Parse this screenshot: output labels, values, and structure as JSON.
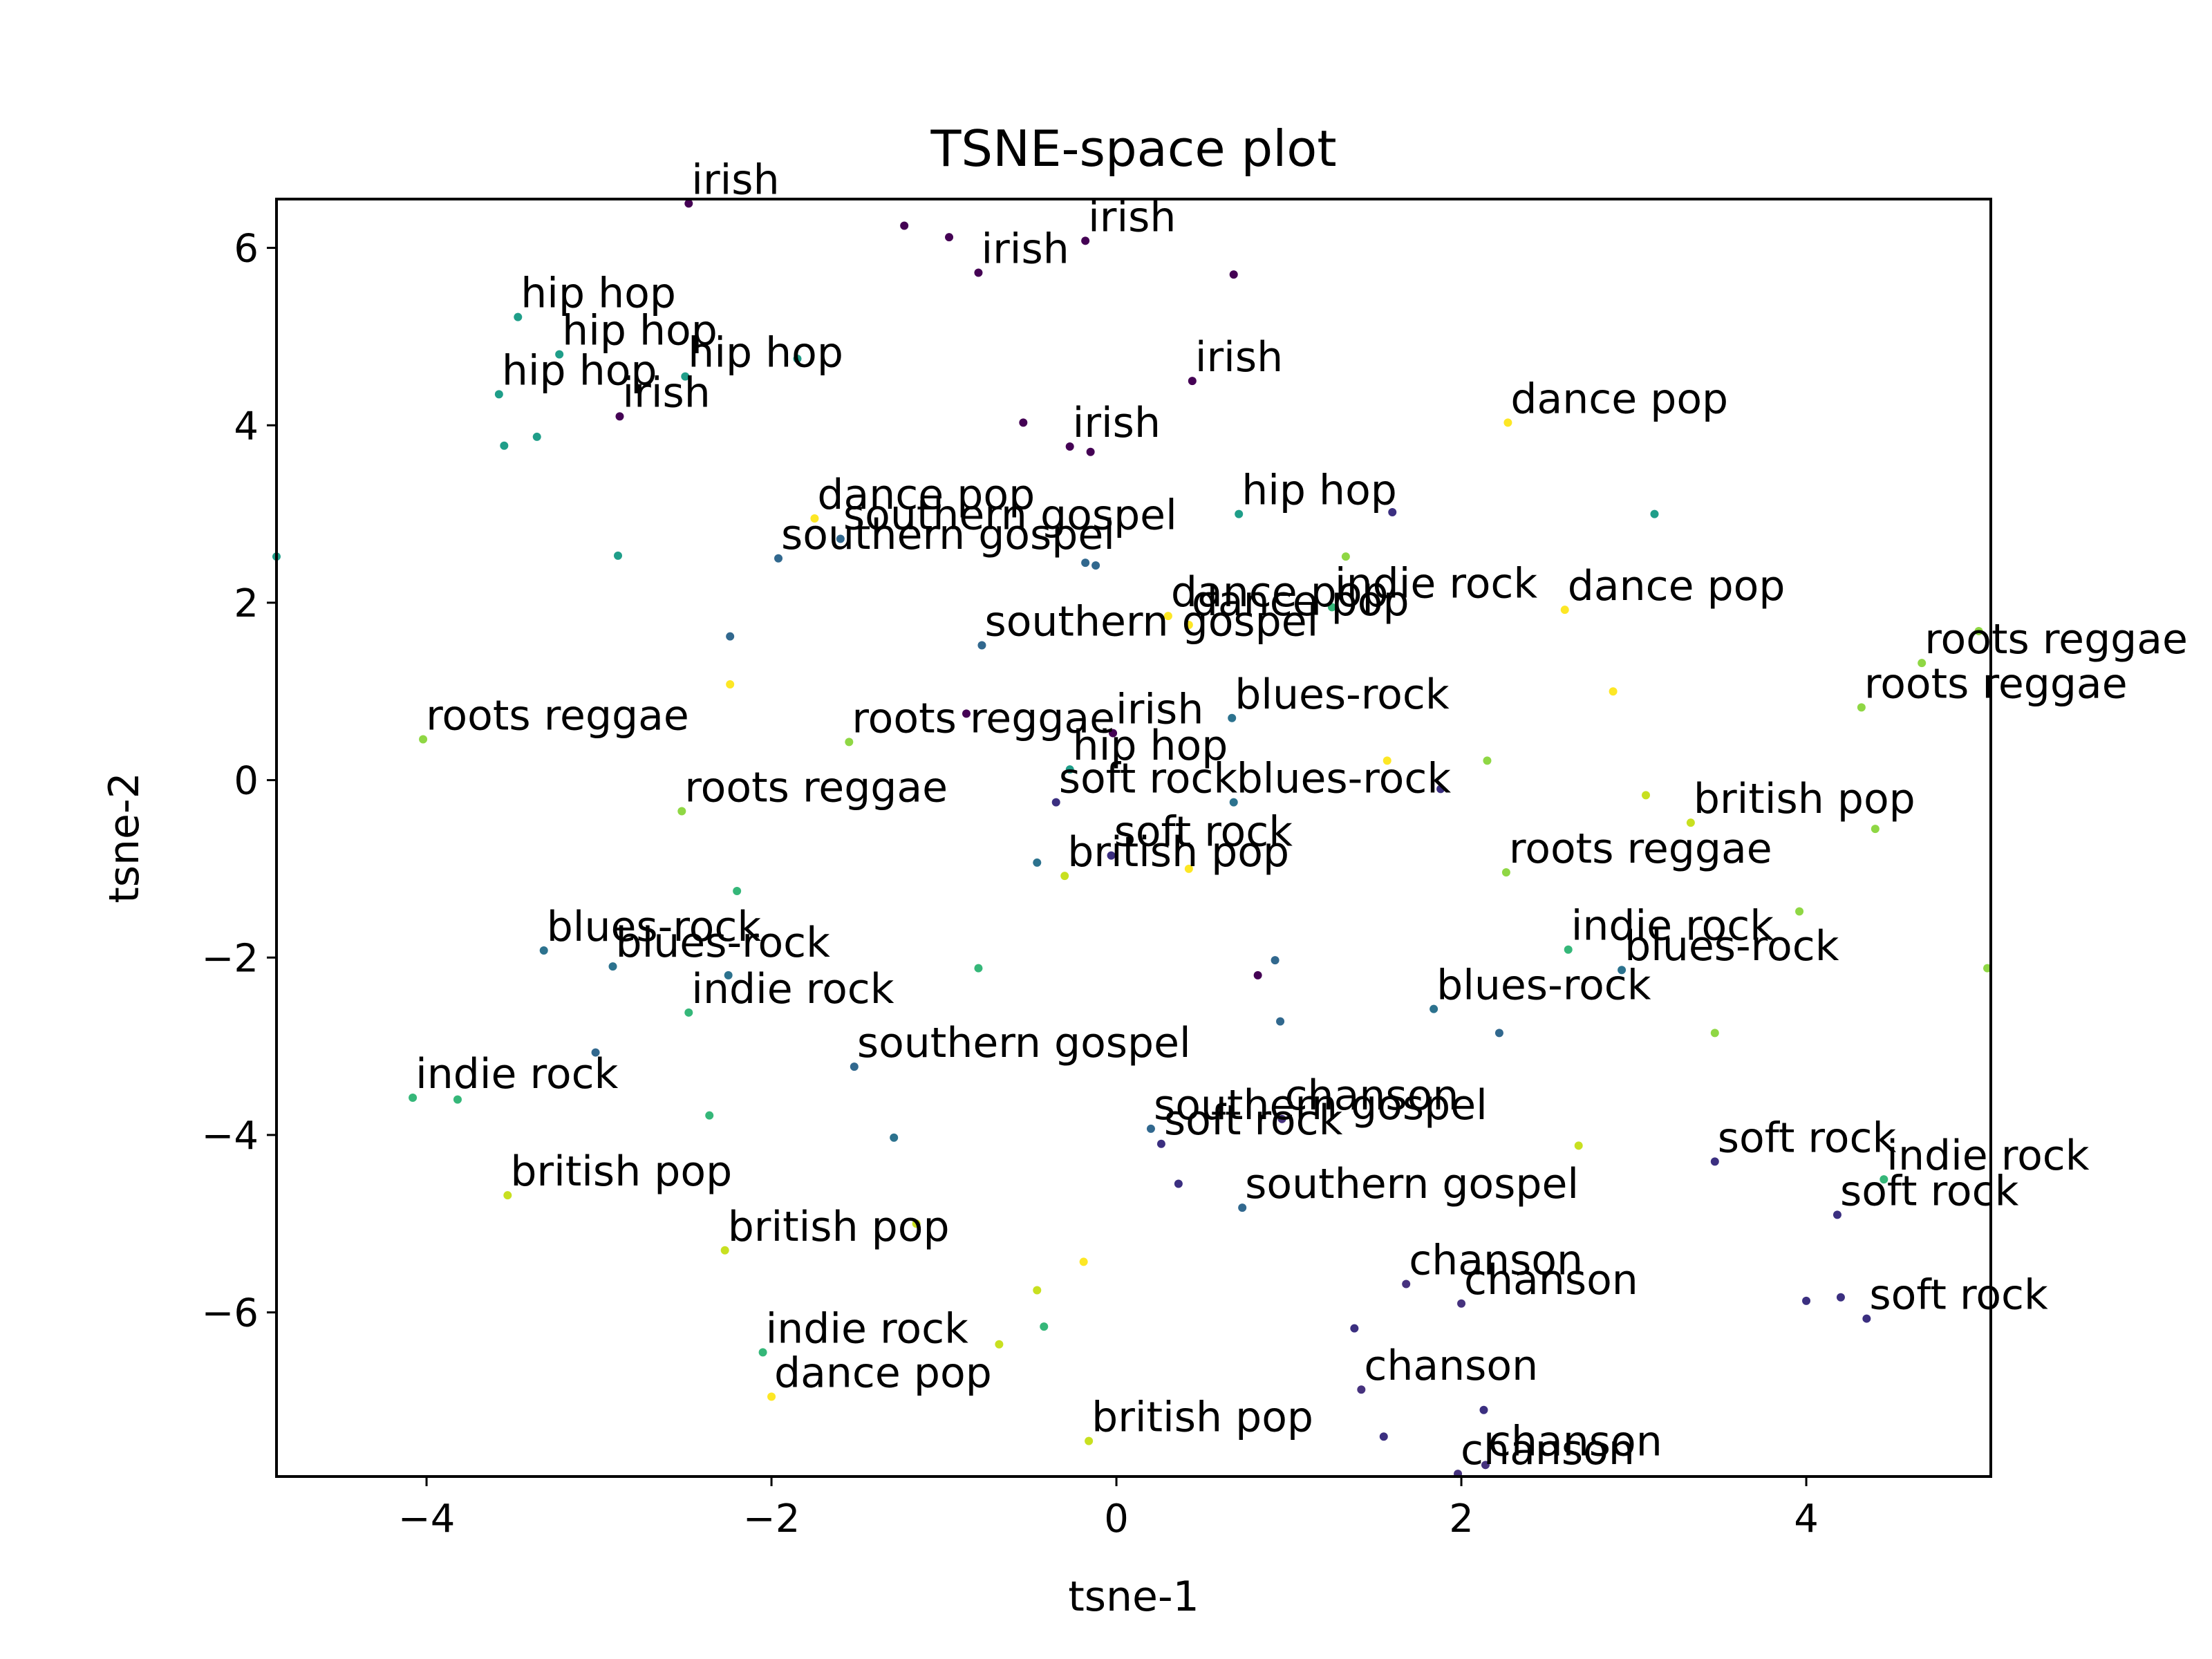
{
  "chart_data": {
    "type": "scatter",
    "title": "TSNE-space plot",
    "xlabel": "tsne-1",
    "ylabel": "tsne-2",
    "xlim": [
      -4.87,
      5.07
    ],
    "ylim": [
      -7.85,
      6.55
    ],
    "xticks": [
      -4,
      -2,
      0,
      2,
      4
    ],
    "yticks": [
      -6,
      -4,
      -2,
      0,
      2,
      4,
      6
    ],
    "xtick_labels": [
      "−4",
      "−2",
      "0",
      "2",
      "4"
    ],
    "ytick_labels": [
      "−6",
      "−4",
      "−2",
      "0",
      "2",
      "4",
      "6"
    ],
    "grid": false,
    "colormap": "viridis",
    "genre_colors": {
      "irish": "#440154",
      "chanson": "#46327e",
      "soft rock": "#3b2f80",
      "southern gospel": "#31688e",
      "blues-rock": "#2c728e",
      "hip hop": "#1f9e89",
      "indie rock": "#35b779",
      "roots reggae": "#8fd744",
      "british pop": "#c8e020",
      "dance pop": "#fde725"
    },
    "labeled_points": [
      {
        "x": -2.48,
        "y": 6.5,
        "label": "irish"
      },
      {
        "x": -0.18,
        "y": 6.08,
        "label": "irish"
      },
      {
        "x": -0.8,
        "y": 5.72,
        "label": "irish"
      },
      {
        "x": -3.47,
        "y": 5.22,
        "label": "hip hop"
      },
      {
        "x": -3.23,
        "y": 4.8,
        "label": "hip hop"
      },
      {
        "x": -2.5,
        "y": 4.55,
        "label": "hip hop"
      },
      {
        "x": -3.58,
        "y": 4.35,
        "label": "hip hop"
      },
      {
        "x": -2.88,
        "y": 4.1,
        "label": "irish"
      },
      {
        "x": 0.44,
        "y": 4.5,
        "label": "irish"
      },
      {
        "x": -0.27,
        "y": 3.76,
        "label": "irish"
      },
      {
        "x": 2.27,
        "y": 4.03,
        "label": "dance pop"
      },
      {
        "x": 0.71,
        "y": 3.0,
        "label": "hip hop"
      },
      {
        "x": -1.75,
        "y": 2.95,
        "label": "dance pop"
      },
      {
        "x": -1.6,
        "y": 2.72,
        "label": "southern gospel"
      },
      {
        "x": -1.96,
        "y": 2.5,
        "label": "southern gospel"
      },
      {
        "x": 0.3,
        "y": 1.85,
        "label": "dance pop"
      },
      {
        "x": 0.42,
        "y": 1.75,
        "label": "dance pop"
      },
      {
        "x": 1.25,
        "y": 1.95,
        "label": "indie rock"
      },
      {
        "x": 2.6,
        "y": 1.92,
        "label": "dance pop"
      },
      {
        "x": -0.78,
        "y": 1.52,
        "label": "southern gospel"
      },
      {
        "x": 4.67,
        "y": 1.32,
        "label": "roots reggae"
      },
      {
        "x": 4.32,
        "y": 0.82,
        "label": "roots reggae"
      },
      {
        "x": 0.67,
        "y": 0.7,
        "label": "blues-rock"
      },
      {
        "x": -0.02,
        "y": 0.53,
        "label": "irish"
      },
      {
        "x": -4.02,
        "y": 0.46,
        "label": "roots reggae"
      },
      {
        "x": -1.55,
        "y": 0.43,
        "label": "roots reggae"
      },
      {
        "x": -0.27,
        "y": 0.12,
        "label": "hip hop"
      },
      {
        "x": 0.68,
        "y": -0.25,
        "label": "blues-rock"
      },
      {
        "x": -0.35,
        "y": -0.25,
        "label": "soft rock"
      },
      {
        "x": -2.52,
        "y": -0.35,
        "label": "roots reggae"
      },
      {
        "x": 3.33,
        "y": -0.48,
        "label": "british pop"
      },
      {
        "x": -0.03,
        "y": -0.85,
        "label": "soft rock"
      },
      {
        "x": -0.3,
        "y": -1.08,
        "label": "british pop"
      },
      {
        "x": 2.26,
        "y": -1.04,
        "label": "roots reggae"
      },
      {
        "x": 2.62,
        "y": -1.91,
        "label": "indie rock"
      },
      {
        "x": -3.32,
        "y": -1.92,
        "label": "blues-rock"
      },
      {
        "x": -2.92,
        "y": -2.1,
        "label": "blues-rock"
      },
      {
        "x": 2.93,
        "y": -2.14,
        "label": "blues-rock"
      },
      {
        "x": 1.84,
        "y": -2.58,
        "label": "blues-rock"
      },
      {
        "x": -2.48,
        "y": -2.62,
        "label": "indie rock"
      },
      {
        "x": -1.52,
        "y": -3.23,
        "label": "southern gospel"
      },
      {
        "x": -4.08,
        "y": -3.58,
        "label": "indie rock"
      },
      {
        "x": 0.96,
        "y": -3.82,
        "label": "chanson"
      },
      {
        "x": 0.2,
        "y": -3.93,
        "label": "southern gospel"
      },
      {
        "x": 0.26,
        "y": -4.1,
        "label": "soft rock"
      },
      {
        "x": 3.47,
        "y": -4.3,
        "label": "soft rock"
      },
      {
        "x": 4.45,
        "y": -4.5,
        "label": "indie rock"
      },
      {
        "x": -3.53,
        "y": -4.68,
        "label": "british pop"
      },
      {
        "x": 0.73,
        "y": -4.82,
        "label": "southern gospel"
      },
      {
        "x": 4.18,
        "y": -4.9,
        "label": "soft rock"
      },
      {
        "x": -2.27,
        "y": -5.3,
        "label": "british pop"
      },
      {
        "x": 1.68,
        "y": -5.68,
        "label": "chanson"
      },
      {
        "x": 2.0,
        "y": -5.9,
        "label": "chanson"
      },
      {
        "x": 4.35,
        "y": -6.07,
        "label": "soft rock"
      },
      {
        "x": -2.05,
        "y": -6.45,
        "label": "indie rock"
      },
      {
        "x": -2.0,
        "y": -6.95,
        "label": "dance pop"
      },
      {
        "x": 1.42,
        "y": -6.87,
        "label": "chanson"
      },
      {
        "x": -0.16,
        "y": -7.45,
        "label": "british pop"
      },
      {
        "x": 2.14,
        "y": -7.72,
        "label": "chanson"
      },
      {
        "x": 1.98,
        "y": -7.82,
        "label": "chanson"
      }
    ],
    "unlabeled_points": [
      {
        "x": -1.23,
        "y": 6.25,
        "genre": "irish"
      },
      {
        "x": -0.97,
        "y": 6.12,
        "genre": "irish"
      },
      {
        "x": 0.68,
        "y": 5.7,
        "genre": "irish"
      },
      {
        "x": -1.85,
        "y": 4.75,
        "genre": "hip hop"
      },
      {
        "x": -3.36,
        "y": 3.87,
        "genre": "hip hop"
      },
      {
        "x": -3.55,
        "y": 3.77,
        "genre": "hip hop"
      },
      {
        "x": -0.54,
        "y": 4.03,
        "genre": "irish"
      },
      {
        "x": -0.15,
        "y": 3.7,
        "genre": "irish"
      },
      {
        "x": 1.6,
        "y": 3.02,
        "genre": "soft rock"
      },
      {
        "x": 3.12,
        "y": 3.0,
        "genre": "hip hop"
      },
      {
        "x": -4.87,
        "y": 2.52,
        "genre": "hip hop"
      },
      {
        "x": -2.89,
        "y": 2.53,
        "genre": "hip hop"
      },
      {
        "x": 1.33,
        "y": 2.52,
        "genre": "roots reggae"
      },
      {
        "x": -0.18,
        "y": 2.45,
        "genre": "southern gospel"
      },
      {
        "x": -0.12,
        "y": 2.42,
        "genre": "southern gospel"
      },
      {
        "x": -2.24,
        "y": 1.62,
        "genre": "southern gospel"
      },
      {
        "x": 5.0,
        "y": 1.68,
        "genre": "roots reggae"
      },
      {
        "x": -2.24,
        "y": 1.08,
        "genre": "dance pop"
      },
      {
        "x": 2.88,
        "y": 1.0,
        "genre": "dance pop"
      },
      {
        "x": -0.87,
        "y": 0.75,
        "genre": "irish"
      },
      {
        "x": 1.57,
        "y": 0.22,
        "genre": "dance pop"
      },
      {
        "x": 2.15,
        "y": 0.22,
        "genre": "roots reggae"
      },
      {
        "x": 1.88,
        "y": -0.1,
        "genre": "soft rock"
      },
      {
        "x": 3.07,
        "y": -0.17,
        "genre": "british pop"
      },
      {
        "x": 4.4,
        "y": -0.55,
        "genre": "roots reggae"
      },
      {
        "x": -0.46,
        "y": -0.93,
        "genre": "blues-rock"
      },
      {
        "x": 0.42,
        "y": -1.0,
        "genre": "dance pop"
      },
      {
        "x": -2.2,
        "y": -1.25,
        "genre": "indie rock"
      },
      {
        "x": 3.96,
        "y": -1.48,
        "genre": "roots reggae"
      },
      {
        "x": 0.92,
        "y": -2.03,
        "genre": "southern gospel"
      },
      {
        "x": -0.8,
        "y": -2.12,
        "genre": "indie rock"
      },
      {
        "x": 0.82,
        "y": -2.2,
        "genre": "irish"
      },
      {
        "x": 5.05,
        "y": -2.12,
        "genre": "roots reggae"
      },
      {
        "x": -2.25,
        "y": -2.2,
        "genre": "blues-rock"
      },
      {
        "x": 0.95,
        "y": -2.72,
        "genre": "southern gospel"
      },
      {
        "x": 3.47,
        "y": -2.85,
        "genre": "roots reggae"
      },
      {
        "x": 2.22,
        "y": -2.85,
        "genre": "southern gospel"
      },
      {
        "x": -3.02,
        "y": -3.07,
        "genre": "southern gospel"
      },
      {
        "x": -3.82,
        "y": -3.6,
        "genre": "indie rock"
      },
      {
        "x": -2.36,
        "y": -3.78,
        "genre": "indie rock"
      },
      {
        "x": -1.29,
        "y": -4.03,
        "genre": "blues-rock"
      },
      {
        "x": 2.68,
        "y": -4.12,
        "genre": "british pop"
      },
      {
        "x": 0.36,
        "y": -4.55,
        "genre": "soft rock"
      },
      {
        "x": -1.16,
        "y": -5.0,
        "genre": "british pop"
      },
      {
        "x": -0.19,
        "y": -5.43,
        "genre": "dance pop"
      },
      {
        "x": -0.46,
        "y": -5.75,
        "genre": "british pop"
      },
      {
        "x": 4.0,
        "y": -5.87,
        "genre": "soft rock"
      },
      {
        "x": 4.2,
        "y": -5.83,
        "genre": "soft rock"
      },
      {
        "x": -0.42,
        "y": -6.16,
        "genre": "indie rock"
      },
      {
        "x": 1.38,
        "y": -6.18,
        "genre": "soft rock"
      },
      {
        "x": -0.68,
        "y": -6.36,
        "genre": "british pop"
      },
      {
        "x": 2.13,
        "y": -7.1,
        "genre": "soft rock"
      },
      {
        "x": 1.55,
        "y": -7.4,
        "genre": "soft rock"
      }
    ]
  }
}
